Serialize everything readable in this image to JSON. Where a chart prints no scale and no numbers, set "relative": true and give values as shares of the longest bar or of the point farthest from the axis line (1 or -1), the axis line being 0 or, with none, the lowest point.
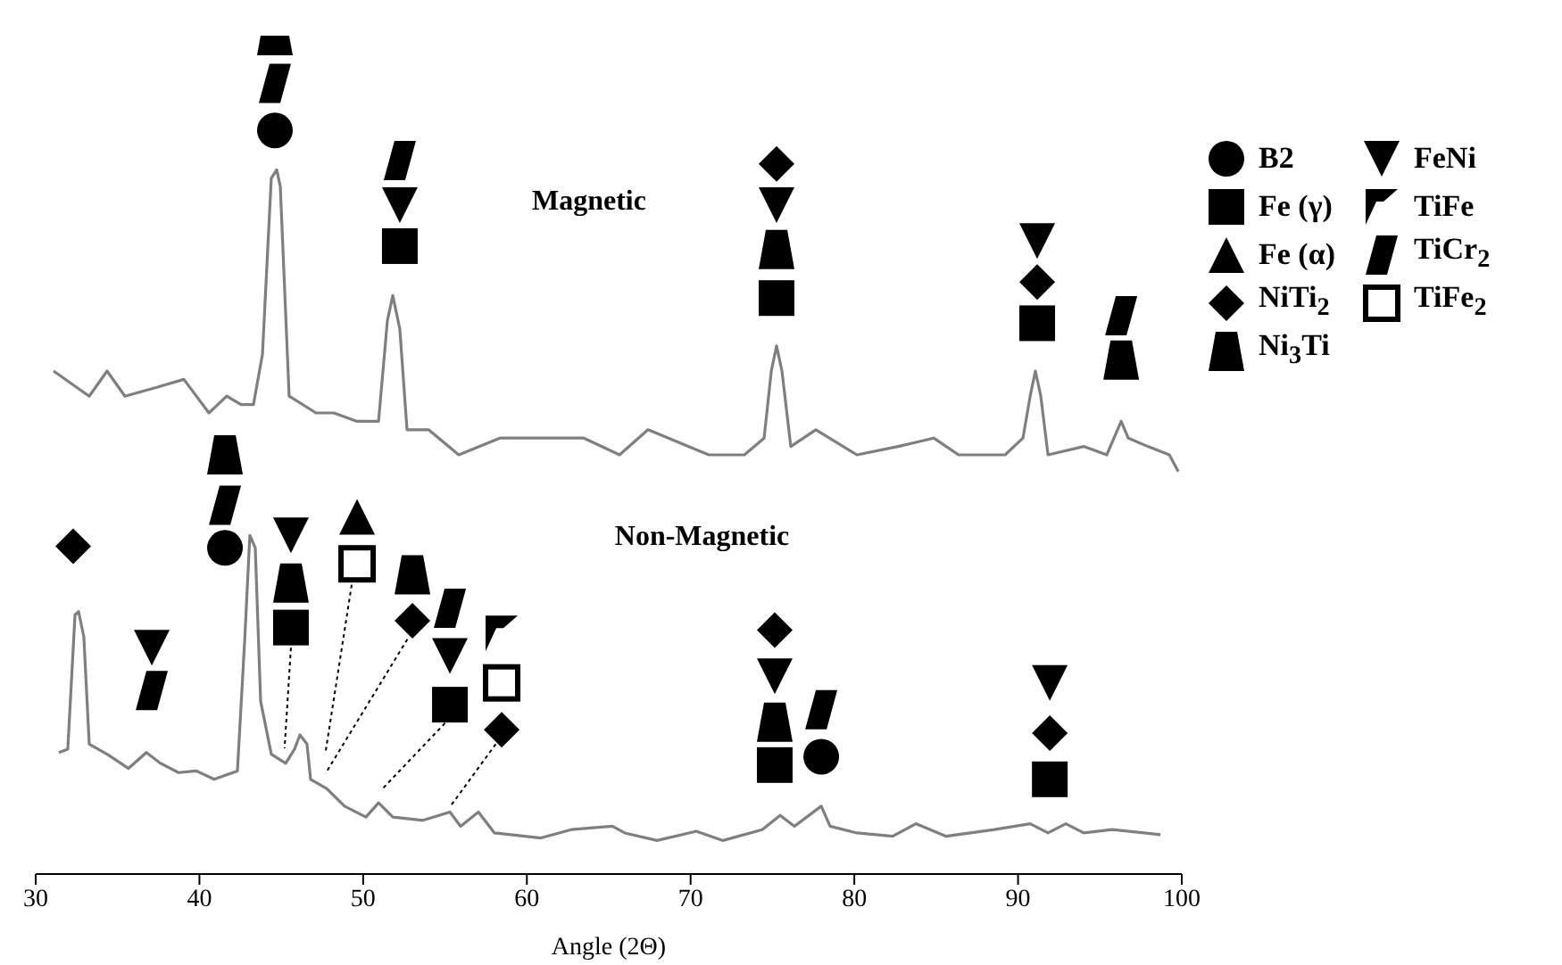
{
  "chart_data": {
    "type": "line",
    "relative": true,
    "xlabel": "Angle (2Θ)",
    "xlim": [
      30,
      100
    ],
    "xticks": [
      30,
      40,
      50,
      60,
      70,
      80,
      90,
      100
    ],
    "legend": "right",
    "annotations": [
      "Magnetic",
      "Non-Magnetic"
    ],
    "series": [
      {
        "color": "#7f7f7f",
        "x": [
          31.09,
          33.27,
          34.36,
          35.45,
          37.31,
          39.05,
          40.58,
          41.67,
          42.54,
          43.3,
          43.85,
          44.39,
          44.72,
          44.94,
          45.48,
          47.12,
          48.21,
          49.63,
          50.94,
          51.48,
          51.81,
          52.24,
          52.68,
          53.99,
          55.84,
          58.35,
          61.29,
          63.48,
          65.66,
          67.4,
          71.11,
          73.29,
          74.49,
          74.93,
          75.25,
          75.58,
          76.12,
          77.65,
          80.16,
          82.67,
          84.85,
          86.37,
          89.21,
          90.3,
          90.74,
          91.06,
          91.39,
          91.83,
          94.01,
          95.42,
          96.3,
          96.73,
          97.93,
          99.24,
          99.79
        ],
        "values": [
          0.6,
          0.57,
          0.6,
          0.57,
          0.58,
          0.59,
          0.55,
          0.57,
          0.56,
          0.56,
          0.62,
          0.83,
          0.84,
          0.82,
          0.57,
          0.55,
          0.55,
          0.54,
          0.54,
          0.66,
          0.69,
          0.65,
          0.53,
          0.53,
          0.5,
          0.52,
          0.52,
          0.52,
          0.5,
          0.53,
          0.5,
          0.5,
          0.52,
          0.6,
          0.63,
          0.6,
          0.51,
          0.53,
          0.5,
          0.51,
          0.52,
          0.5,
          0.5,
          0.52,
          0.57,
          0.6,
          0.57,
          0.5,
          0.51,
          0.5,
          0.54,
          0.52,
          0.51,
          0.5,
          0.48
        ]
      },
      {
        "color": "#7f7f7f",
        "x": [
          31.42,
          31.96,
          32.4,
          32.62,
          32.94,
          33.27,
          34.36,
          35.67,
          36.76,
          37.63,
          38.72,
          39.81,
          40.9,
          42.32,
          42.76,
          43.08,
          43.41,
          43.74,
          44.39,
          45.27,
          45.81,
          46.14,
          46.57,
          46.79,
          47.77,
          48.86,
          50.17,
          50.94,
          51.81,
          53.66,
          55.3,
          55.95,
          57.04,
          58.02,
          60.86,
          62.71,
          65.22,
          65.98,
          67.95,
          70.34,
          71.98,
          74.38,
          75.47,
          76.34,
          77.98,
          78.52,
          80.16,
          82.34,
          83.76,
          85.61,
          88.56,
          90.74,
          91.83,
          92.92,
          94.01,
          95.76,
          98.7
        ],
        "values": [
          0.145,
          0.149,
          0.309,
          0.313,
          0.283,
          0.155,
          0.143,
          0.126,
          0.145,
          0.132,
          0.121,
          0.123,
          0.113,
          0.123,
          0.277,
          0.404,
          0.389,
          0.206,
          0.143,
          0.132,
          0.149,
          0.166,
          0.155,
          0.113,
          0.102,
          0.081,
          0.068,
          0.085,
          0.068,
          0.064,
          0.074,
          0.057,
          0.074,
          0.049,
          0.043,
          0.053,
          0.057,
          0.049,
          0.04,
          0.051,
          0.04,
          0.053,
          0.07,
          0.057,
          0.081,
          0.057,
          0.049,
          0.045,
          0.06,
          0.045,
          0.053,
          0.06,
          0.049,
          0.06,
          0.049,
          0.053,
          0.047
        ]
      },
      {
        "type": "scatter",
        "name": "B2",
        "marker": "circle",
        "color": "#000000",
        "x": [
          44.61,
          41.56,
          77.98
        ],
        "values": [
          0.887,
          0.389,
          0.14
        ]
      },
      {
        "type": "scatter",
        "name": "Fe (γ)",
        "marker": "square",
        "color": "#000000",
        "x": [
          52.24,
          75.25,
          91.17,
          45.59,
          55.3,
          75.14,
          91.94
        ],
        "values": [
          0.749,
          0.687,
          0.657,
          0.294,
          0.202,
          0.13,
          0.113
        ]
      },
      {
        "type": "scatter",
        "name": "Fe (α)",
        "marker": "triangle",
        "color": "#000000",
        "x": [
          49.63
        ],
        "values": [
          0.426
        ]
      },
      {
        "type": "scatter",
        "name": "NiTi$_{2}$",
        "marker": "diamond",
        "color": "#000000",
        "x": [
          75.25,
          91.17,
          32.29,
          53.01,
          58.46,
          75.14,
          91.94
        ],
        "values": [
          0.847,
          0.706,
          0.391,
          0.302,
          0.172,
          0.291,
          0.168
        ]
      },
      {
        "type": "scatter",
        "name": "Ni$_{3}$Ti",
        "color": "#000000",
        "x": [
          44.61,
          75.25,
          96.3,
          41.56,
          45.59,
          53.01,
          75.14
        ],
        "values": [
          1.0,
          0.745,
          0.613,
          0.5,
          0.347,
          0.357,
          0.181
        ]
      },
      {
        "type": "scatter",
        "name": "FeNi",
        "color": "#000000",
        "x": [
          52.24,
          75.25,
          91.17,
          37.09,
          45.59,
          55.3,
          75.14,
          91.94
        ],
        "values": [
          0.798,
          0.798,
          0.755,
          0.27,
          0.404,
          0.26,
          0.236,
          0.228
        ]
      },
      {
        "type": "scatter",
        "name": "TiFe",
        "color": "#000000",
        "x": [
          58.46
        ],
        "values": [
          0.287
        ]
      },
      {
        "type": "scatter",
        "name": "TiCr$_{2}$",
        "color": "#000000",
        "x": [
          44.61,
          52.24,
          96.3,
          37.09,
          41.56,
          55.3,
          77.98
        ],
        "values": [
          0.943,
          0.851,
          0.666,
          0.219,
          0.44,
          0.317,
          0.196
        ]
      },
      {
        "type": "scatter",
        "name": "TiFe$_{2}$",
        "color": "#000000",
        "x": [
          49.63,
          58.46
        ],
        "values": [
          0.37,
          0.228
        ]
      }
    ]
  }
}
